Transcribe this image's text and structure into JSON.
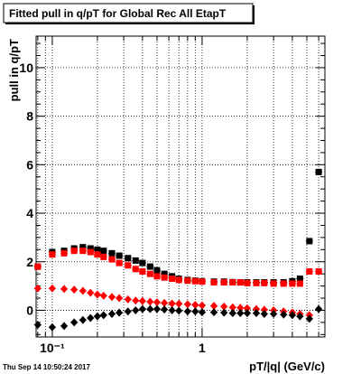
{
  "title": "Fitted pull in q/pT for Global Rec All EtapT",
  "footer": "Thu Sep 14 10:50:24 2017",
  "chart_data": {
    "type": "scatter",
    "title": "Fitted pull in q/pT for Global Rec All EtapT",
    "xlabel": "pT/|q| (GeV/c)",
    "ylabel": "pull in q/pT",
    "xscale": "log",
    "xlim": [
      0.078,
      6.6
    ],
    "ylim": [
      -1.1,
      11.3
    ],
    "grid": true,
    "x_ticks": [
      {
        "value": 0.1,
        "label": "10⁻¹"
      },
      {
        "value": 1,
        "label": "1"
      }
    ],
    "y_ticks": [
      {
        "value": 0,
        "label": "0"
      },
      {
        "value": 2,
        "label": "2"
      },
      {
        "value": 4,
        "label": "4"
      },
      {
        "value": 6,
        "label": "6"
      },
      {
        "value": 8,
        "label": "8"
      },
      {
        "value": 10,
        "label": "10"
      }
    ],
    "series": [
      {
        "color": "#000000",
        "marker": "square",
        "x": [
          0.08,
          0.1,
          0.12,
          0.14,
          0.16,
          0.18,
          0.2,
          0.22,
          0.25,
          0.28,
          0.32,
          0.36,
          0.4,
          0.45,
          0.5,
          0.56,
          0.63,
          0.7,
          0.8,
          0.9,
          1.0,
          1.2,
          1.4,
          1.6,
          1.8,
          2.0,
          2.3,
          2.6,
          3.0,
          3.5,
          4.0,
          4.5,
          5.2,
          6.0
        ],
        "y": [
          1.8,
          2.4,
          2.45,
          2.55,
          2.6,
          2.55,
          2.5,
          2.45,
          2.35,
          2.25,
          2.15,
          2.05,
          1.95,
          1.8,
          1.65,
          1.5,
          1.4,
          1.3,
          1.25,
          1.22,
          1.2,
          1.18,
          1.18,
          1.16,
          1.15,
          1.15,
          1.15,
          1.15,
          1.15,
          1.15,
          1.2,
          1.3,
          2.85,
          5.7
        ]
      },
      {
        "color": "#ff0000",
        "marker": "square",
        "x": [
          0.08,
          0.1,
          0.12,
          0.14,
          0.16,
          0.18,
          0.2,
          0.22,
          0.25,
          0.28,
          0.32,
          0.36,
          0.4,
          0.45,
          0.5,
          0.56,
          0.63,
          0.7,
          0.8,
          0.9,
          1.0,
          1.2,
          1.4,
          1.6,
          1.8,
          2.0,
          2.3,
          2.6,
          3.0,
          3.5,
          4.0,
          4.5,
          5.2,
          6.0
        ],
        "y": [
          1.8,
          2.3,
          2.35,
          2.45,
          2.45,
          2.4,
          2.3,
          2.2,
          2.1,
          1.95,
          1.85,
          1.7,
          1.6,
          1.5,
          1.4,
          1.35,
          1.3,
          1.25,
          1.22,
          1.2,
          1.18,
          1.15,
          1.15,
          1.15,
          1.15,
          1.12,
          1.12,
          1.12,
          1.1,
          1.1,
          1.1,
          1.1,
          1.6,
          1.6
        ]
      },
      {
        "color": "#ff0000",
        "marker": "diamond",
        "x": [
          0.08,
          0.1,
          0.12,
          0.14,
          0.16,
          0.18,
          0.2,
          0.22,
          0.25,
          0.28,
          0.32,
          0.36,
          0.4,
          0.45,
          0.5,
          0.56,
          0.63,
          0.7,
          0.8,
          0.9,
          1.0,
          1.2,
          1.4,
          1.6,
          1.8,
          2.0,
          2.3,
          2.6,
          3.0,
          3.5,
          4.0,
          4.5,
          5.2
        ],
        "y": [
          0.9,
          0.9,
          0.88,
          0.85,
          0.8,
          0.72,
          0.65,
          0.6,
          0.55,
          0.5,
          0.45,
          0.4,
          0.38,
          0.35,
          0.33,
          0.3,
          0.28,
          0.27,
          0.25,
          0.22,
          0.2,
          0.18,
          0.15,
          0.12,
          0.1,
          0.08,
          0.05,
          0.02,
          0.0,
          -0.05,
          -0.1,
          -0.15,
          -0.2
        ]
      },
      {
        "color": "#000000",
        "marker": "diamond",
        "x": [
          0.08,
          0.1,
          0.12,
          0.14,
          0.16,
          0.18,
          0.2,
          0.22,
          0.25,
          0.28,
          0.32,
          0.36,
          0.4,
          0.45,
          0.5,
          0.56,
          0.63,
          0.7,
          0.8,
          0.9,
          1.0,
          1.2,
          1.4,
          1.6,
          1.8,
          2.0,
          2.3,
          2.6,
          3.0,
          3.5,
          4.0,
          4.5,
          5.2,
          6.0
        ],
        "y": [
          -0.6,
          -0.7,
          -0.65,
          -0.5,
          -0.4,
          -0.32,
          -0.25,
          -0.2,
          -0.15,
          -0.1,
          -0.05,
          0.0,
          0.05,
          0.05,
          0.05,
          0.03,
          0.0,
          -0.02,
          -0.05,
          -0.05,
          -0.08,
          -0.08,
          -0.1,
          -0.12,
          -0.12,
          -0.12,
          -0.12,
          -0.15,
          -0.15,
          -0.18,
          -0.2,
          -0.25,
          -0.35,
          0.05
        ]
      }
    ]
  }
}
